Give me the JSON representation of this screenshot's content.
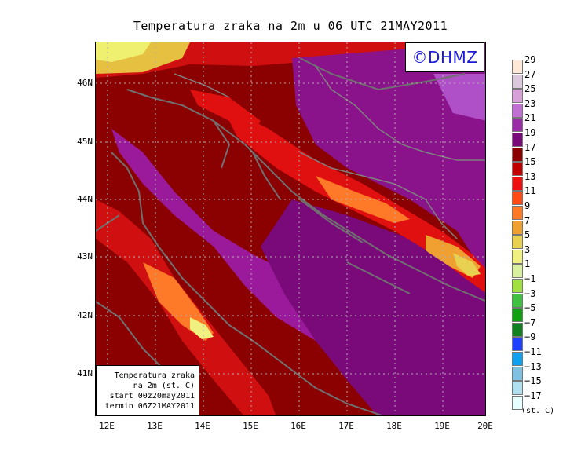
{
  "title": "Temperatura zraka na 2m u 06 UTC 21MAY2011",
  "copyright": "©DHMZ",
  "lat_labels": [
    "46N",
    "45N",
    "44N",
    "43N",
    "42N",
    "41N"
  ],
  "lon_labels": [
    "12E",
    "13E",
    "14E",
    "15E",
    "16E",
    "17E",
    "18E",
    "19E",
    "20E"
  ],
  "info": {
    "line1": "Temperatura zraka",
    "line2": "na 2m (st. C)",
    "line3": "start 00z20may2011",
    "line4": "termin 06Z21MAY2011"
  },
  "legend": {
    "unit": "(st. C)",
    "labels": [
      "29",
      "27",
      "25",
      "23",
      "21",
      "19",
      "17",
      "15",
      "13",
      "11",
      "9",
      "7",
      "5",
      "3",
      "1",
      "−1",
      "−3",
      "−5",
      "−7",
      "−9",
      "−11",
      "−13",
      "−15",
      "−17"
    ],
    "colors": [
      "#ffe8d8",
      "#dcc8dc",
      "#d8a0d8",
      "#c070d0",
      "#9b2ca8",
      "#7a0a7a",
      "#8b0000",
      "#c00000",
      "#ee1010",
      "#ff4a14",
      "#ff7a28",
      "#f0a030",
      "#e8d050",
      "#f0f080",
      "#d8f0a0",
      "#a0e040",
      "#40c040",
      "#10a010",
      "#108020",
      "#2040ff",
      "#10a0f0",
      "#80c0e0",
      "#b0e0f0",
      "#e8ffff"
    ]
  },
  "colors": {
    "sea": "#9b1a9b",
    "land": "#8b0000",
    "coast": "#707070",
    "warm_high": "#e04010",
    "cool_low": "#e6e050"
  }
}
